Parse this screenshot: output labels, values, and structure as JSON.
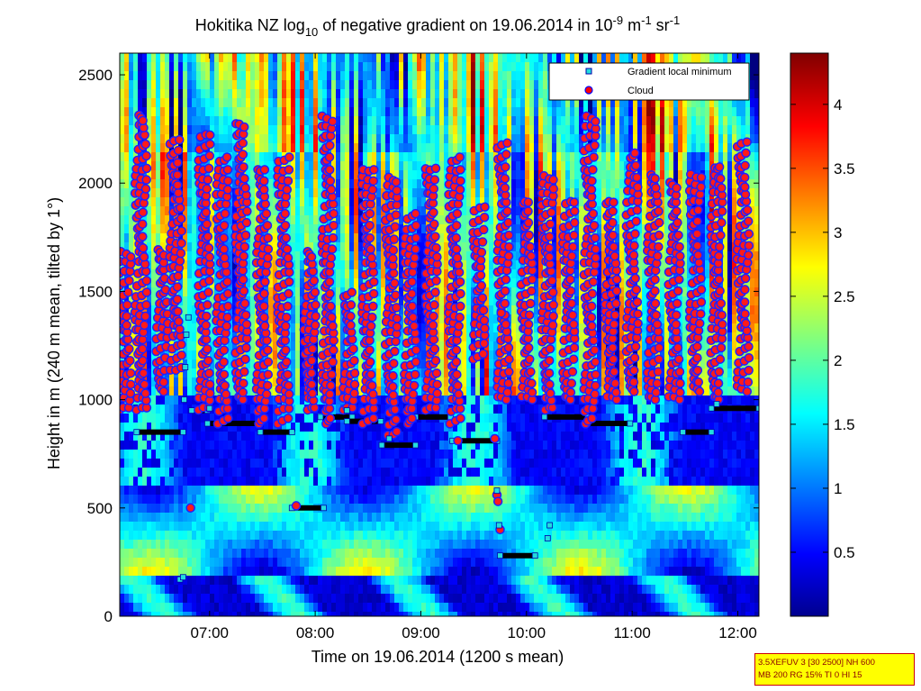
{
  "chart_data": {
    "type": "heatmap",
    "title": {
      "pre": "Hokitika NZ log",
      "log_base": "10",
      "mid": " of negative gradient on 19.06.2014 in 10",
      "exp1": "-9",
      "unit1": " m",
      "exp2": "-1",
      "unit2": " sr",
      "exp3": "-1"
    },
    "xlabel": "Time on 19.06.2014 (1200 s mean)",
    "ylabel": "Height in m (240 m mean, tilted by 1°)",
    "x_ticks": [
      "07:00",
      "08:00",
      "09:00",
      "10:00",
      "11:00",
      "12:00"
    ],
    "x_tick_hours": [
      7,
      8,
      9,
      10,
      11,
      12
    ],
    "xlim_hours": [
      6.15,
      12.2
    ],
    "ylim": [
      0,
      2600
    ],
    "y_ticks": [
      0,
      500,
      1000,
      1500,
      2000,
      2500
    ],
    "colorbar": {
      "range": [
        0,
        4.4
      ],
      "ticks": [
        0.5,
        1,
        1.5,
        2,
        2.5,
        3,
        3.5,
        4
      ],
      "tick_labels": [
        "0.5",
        "1",
        "1.5",
        "2",
        "2.5",
        "3",
        "3.5",
        "4"
      ],
      "colormap": "jet"
    },
    "legend": {
      "position": "top-right",
      "entries": [
        {
          "label": "Gradient local minimum",
          "marker": "square",
          "color": "#22dddd"
        },
        {
          "label": "Cloud",
          "marker": "circle",
          "color": "#ff0000",
          "edge": "#0000ff"
        }
      ]
    },
    "gradient_minimum_segments": [
      {
        "t0": 6.15,
        "t1": 6.28,
        "h": 960
      },
      {
        "t0": 6.31,
        "t1": 6.75,
        "h": 850
      },
      {
        "t0": 6.83,
        "t1": 6.98,
        "h": 950
      },
      {
        "t0": 6.98,
        "t1": 7.48,
        "h": 890
      },
      {
        "t0": 7.48,
        "t1": 7.78,
        "h": 850
      },
      {
        "t0": 7.78,
        "t1": 8.08,
        "h": 500
      },
      {
        "t0": 8.05,
        "t1": 8.35,
        "h": 920
      },
      {
        "t0": 8.3,
        "t1": 8.62,
        "h": 900
      },
      {
        "t0": 8.63,
        "t1": 8.95,
        "h": 790
      },
      {
        "t0": 8.95,
        "t1": 9.28,
        "h": 920
      },
      {
        "t0": 9.3,
        "t1": 9.72,
        "h": 810
      },
      {
        "t0": 9.75,
        "t1": 10.08,
        "h": 280
      },
      {
        "t0": 10.17,
        "t1": 10.58,
        "h": 920
      },
      {
        "t0": 10.58,
        "t1": 10.98,
        "h": 890
      },
      {
        "t0": 11.48,
        "t1": 11.75,
        "h": 850
      },
      {
        "t0": 11.75,
        "t1": 12.2,
        "h": 960
      }
    ],
    "gradient_minimum_points": [
      {
        "t": 6.72,
        "h": 170
      },
      {
        "t": 6.75,
        "h": 180
      },
      {
        "t": 9.72,
        "h": 580
      },
      {
        "t": 9.74,
        "h": 420
      },
      {
        "t": 10.22,
        "h": 420
      },
      {
        "t": 10.2,
        "h": 360
      },
      {
        "t": 6.78,
        "h": 1300
      },
      {
        "t": 6.77,
        "h": 1150
      },
      {
        "t": 6.76,
        "h": 1000
      },
      {
        "t": 6.8,
        "h": 1380
      },
      {
        "t": 8.7,
        "h": 820
      },
      {
        "t": 11.8,
        "h": 980
      },
      {
        "t": 7.0,
        "h": 960
      },
      {
        "t": 8.3,
        "h": 950
      }
    ],
    "cloud_columns": [
      {
        "t": 6.2,
        "h_low": 950,
        "h_high": 1700
      },
      {
        "t": 6.35,
        "h_low": 950,
        "h_high": 2300
      },
      {
        "t": 6.55,
        "h_low": 1050,
        "h_high": 1700
      },
      {
        "t": 6.68,
        "h_low": 1150,
        "h_high": 2200
      },
      {
        "t": 6.95,
        "h_low": 950,
        "h_high": 2250
      },
      {
        "t": 7.12,
        "h_low": 900,
        "h_high": 2150
      },
      {
        "t": 7.3,
        "h_low": 1000,
        "h_high": 2300
      },
      {
        "t": 7.5,
        "h_low": 900,
        "h_high": 2100
      },
      {
        "t": 7.7,
        "h_low": 900,
        "h_high": 2150
      },
      {
        "t": 7.95,
        "h_low": 950,
        "h_high": 1700
      },
      {
        "t": 8.12,
        "h_low": 900,
        "h_high": 2300
      },
      {
        "t": 8.32,
        "h_low": 950,
        "h_high": 1500
      },
      {
        "t": 8.5,
        "h_low": 900,
        "h_high": 2100
      },
      {
        "t": 8.72,
        "h_low": 850,
        "h_high": 2050
      },
      {
        "t": 8.9,
        "h_low": 900,
        "h_high": 1850
      },
      {
        "t": 9.1,
        "h_low": 950,
        "h_high": 2100
      },
      {
        "t": 9.32,
        "h_low": 900,
        "h_high": 2150
      },
      {
        "t": 9.55,
        "h_low": 1200,
        "h_high": 1900
      },
      {
        "t": 9.78,
        "h_low": 1000,
        "h_high": 2200
      },
      {
        "t": 10.0,
        "h_low": 1000,
        "h_high": 1900
      },
      {
        "t": 10.2,
        "h_low": 950,
        "h_high": 2050
      },
      {
        "t": 10.4,
        "h_low": 1000,
        "h_high": 1900
      },
      {
        "t": 10.6,
        "h_low": 900,
        "h_high": 2300
      },
      {
        "t": 10.8,
        "h_low": 1000,
        "h_high": 1900
      },
      {
        "t": 11.0,
        "h_low": 1050,
        "h_high": 2150
      },
      {
        "t": 11.2,
        "h_low": 1000,
        "h_high": 2050
      },
      {
        "t": 11.4,
        "h_low": 1000,
        "h_high": 2000
      },
      {
        "t": 11.6,
        "h_low": 1050,
        "h_high": 2050
      },
      {
        "t": 11.8,
        "h_low": 1000,
        "h_high": 2100
      },
      {
        "t": 12.05,
        "h_low": 1050,
        "h_high": 2200
      }
    ],
    "cloud_extra_points": [
      {
        "t": 6.82,
        "h": 500
      },
      {
        "t": 7.82,
        "h": 510
      },
      {
        "t": 9.35,
        "h": 810
      },
      {
        "t": 9.72,
        "h": 560
      },
      {
        "t": 9.73,
        "h": 530
      },
      {
        "t": 9.75,
        "h": 400
      },
      {
        "t": 9.7,
        "h": 820
      },
      {
        "t": 9.76,
        "h": 1400
      }
    ]
  },
  "info_box": {
    "line1": "3.5XEFUV 3 [30 2500] NH 600",
    "line2": "MB 200 RG 15% TI 0 HI 15"
  }
}
